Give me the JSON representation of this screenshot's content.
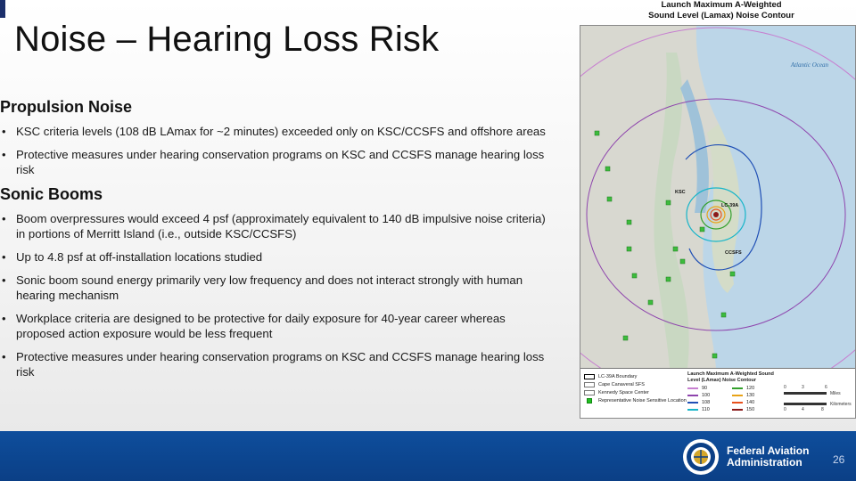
{
  "slide": {
    "title": "Noise – Hearing Loss Risk",
    "page_number": "26"
  },
  "sections": [
    {
      "heading": "Propulsion Noise",
      "bullets": [
        "KSC criteria levels (108 dB LAmax for ~2 minutes) exceeded only on KSC/CCSFS and offshore areas",
        "Protective measures under hearing conservation programs on KSC and CCSFS manage hearing loss risk"
      ]
    },
    {
      "heading": "Sonic Booms",
      "bullets": [
        "Boom overpressures would exceed 4 psf (approximately equivalent to 140 dB impulsive noise criteria) in portions of Merritt Island (i.e., outside KSC/CCSFS)",
        "Up to 4.8 psf at off-installation locations studied",
        "Sonic boom sound energy primarily very low frequency and does not interact strongly with human hearing mechanism",
        "Workplace criteria are designed to be protective for daily exposure for 40-year career whereas proposed action exposure would be less frequent",
        "Protective measures under hearing conservation programs on KSC and CCSFS manage hearing loss risk"
      ]
    }
  ],
  "map": {
    "title_line1": "Launch Maximum A-Weighted",
    "title_line2": "Sound Level (Lamax) Noise Contour",
    "ocean_label": "Atlantic Ocean",
    "labels": {
      "ksc": "KSC",
      "ccsfs": "CCSFS",
      "pad": "LC-39A"
    },
    "legend": {
      "boundaries": [
        {
          "label": "LC-39A Boundary"
        },
        {
          "label": "Cape Canaveral SFS"
        },
        {
          "label": "Kennedy Space Center"
        },
        {
          "label": "Representative Noise Sensitive Location"
        }
      ],
      "contour_title": "Launch Maximum A-Weighted Sound Level (LAmax) Noise Contour",
      "contours": [
        {
          "label": "90",
          "color": "#c77fd0"
        },
        {
          "label": "120",
          "color": "#33a02c"
        },
        {
          "label": "100",
          "color": "#8e44ad"
        },
        {
          "label": "130",
          "color": "#e8a317"
        },
        {
          "label": "108",
          "color": "#1f4fb5"
        },
        {
          "label": "140",
          "color": "#e8501c"
        },
        {
          "label": "110",
          "color": "#17b5c9"
        },
        {
          "label": "150",
          "color": "#8b1a1a"
        }
      ],
      "scale": {
        "miles_label": "Miles",
        "km_label": "Kilometers",
        "m0": "0",
        "m3": "3",
        "m6": "6",
        "k0": "0",
        "k4": "4",
        "k8": "8"
      }
    }
  },
  "footer": {
    "org_line1": "Federal Aviation",
    "org_line2": "Administration"
  }
}
